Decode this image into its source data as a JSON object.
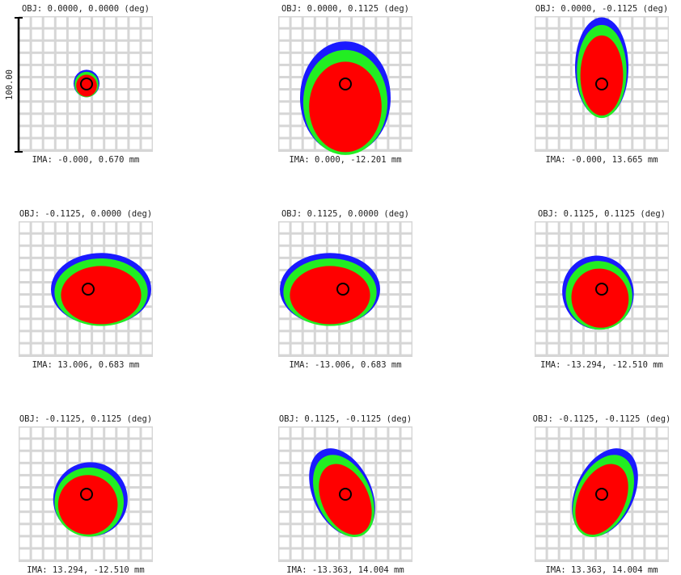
{
  "scale_bar": "100.00",
  "panels": [
    {
      "obj": "OBJ: 0.0000, 0.0000 (deg)",
      "ima": "IMA: -0.000, 0.670 mm"
    },
    {
      "obj": "OBJ: 0.0000, 0.1125 (deg)",
      "ima": "IMA: 0.000, -12.201 mm"
    },
    {
      "obj": "OBJ: 0.0000, -0.1125 (deg)",
      "ima": "IMA: -0.000, 13.665 mm"
    },
    {
      "obj": "OBJ: -0.1125, 0.0000 (deg)",
      "ima": "IMA: 13.006, 0.683 mm"
    },
    {
      "obj": "OBJ: 0.1125, 0.0000 (deg)",
      "ima": "IMA: -13.006, 0.683 mm"
    },
    {
      "obj": "OBJ: 0.1125, 0.1125 (deg)",
      "ima": "IMA: -13.294, -12.510 mm"
    },
    {
      "obj": "OBJ: -0.1125, 0.1125 (deg)",
      "ima": "IMA: 13.294, -12.510 mm"
    },
    {
      "obj": "OBJ: 0.1125, -0.1125 (deg)",
      "ima": "IMA: -13.363, 14.004 mm"
    },
    {
      "obj": "OBJ: -0.1125, -0.1125 (deg)",
      "ima": "IMA: 13.363, 14.004 mm"
    }
  ]
}
